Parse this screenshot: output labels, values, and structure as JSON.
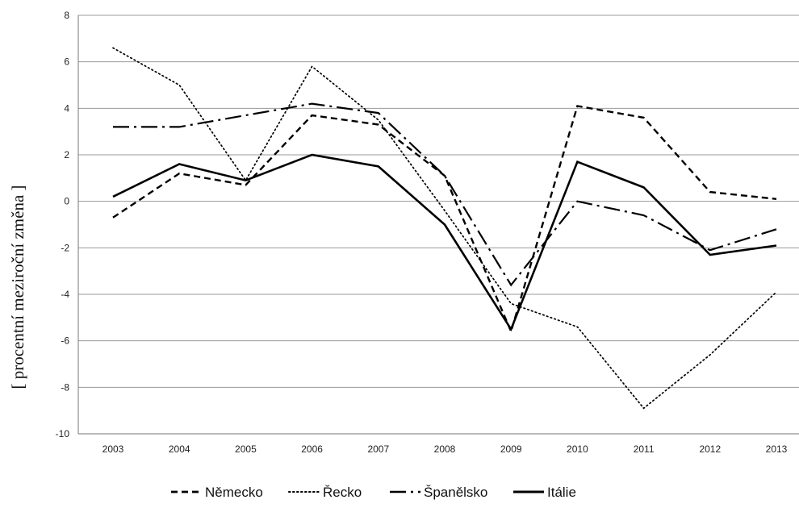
{
  "chart_data": {
    "type": "line",
    "title": "",
    "xlabel": "",
    "ylabel": "[ procentní meziroční změna ]",
    "x": [
      "2003",
      "2004",
      "2005",
      "2006",
      "2007",
      "2008",
      "2009",
      "2010",
      "2011",
      "2012",
      "2013"
    ],
    "ylim": [
      -10,
      8
    ],
    "yticks": [
      8,
      6,
      4,
      2,
      0,
      -2,
      -4,
      -6,
      -8,
      -10
    ],
    "grid": "horizontal",
    "legend_position": "bottom-center",
    "series": [
      {
        "name": "Německo",
        "style": "dashed",
        "values": [
          -0.7,
          1.2,
          0.7,
          3.7,
          3.3,
          1.1,
          -5.6,
          4.1,
          3.6,
          0.4,
          0.1
        ]
      },
      {
        "name": "Řecko",
        "style": "dotted",
        "values": [
          6.6,
          5.0,
          0.9,
          5.8,
          3.5,
          -0.4,
          -4.4,
          -5.4,
          -8.9,
          -6.6,
          -3.9
        ]
      },
      {
        "name": "Španělsko",
        "style": "dash-dot",
        "values": [
          3.2,
          3.2,
          3.7,
          4.2,
          3.8,
          1.1,
          -3.6,
          0.0,
          -0.6,
          -2.1,
          -1.2
        ]
      },
      {
        "name": "Itálie",
        "style": "solid",
        "values": [
          0.2,
          1.6,
          0.9,
          2.0,
          1.5,
          -1.0,
          -5.5,
          1.7,
          0.6,
          -2.3,
          -1.9
        ]
      }
    ],
    "colors": {
      "lines": "#000000",
      "grid": "#9a9a9a",
      "axis": "#555555"
    }
  }
}
